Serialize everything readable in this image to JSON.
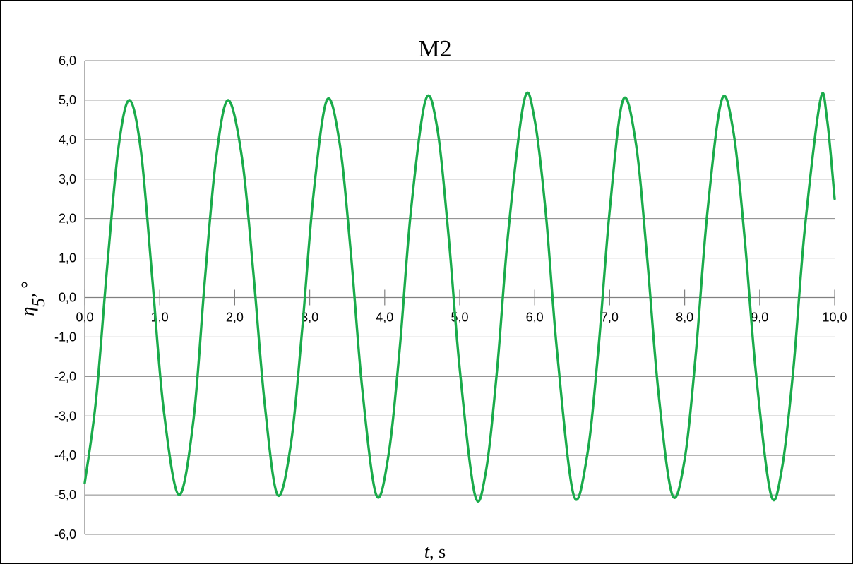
{
  "chart_data": {
    "type": "line",
    "title": "M2",
    "xlabel": {
      "symbol": "t",
      "unit": ", s"
    },
    "ylabel": {
      "symbol": "η",
      "subscript": "5",
      "unit": ", °"
    },
    "xlim": [
      0,
      10
    ],
    "ylim": [
      -6,
      6
    ],
    "x_ticks": [
      0,
      1,
      2,
      3,
      4,
      5,
      6,
      7,
      8,
      9,
      10
    ],
    "x_tick_labels": [
      "0,0",
      "1,0",
      "2,0",
      "3,0",
      "4,0",
      "5,0",
      "6,0",
      "7,0",
      "8,0",
      "9,0",
      "10,0"
    ],
    "y_ticks": [
      6,
      5,
      4,
      3,
      2,
      1,
      0,
      -1,
      -2,
      -3,
      -4,
      -5,
      -6
    ],
    "y_tick_labels": [
      "6,0",
      "5,0",
      "4,0",
      "3,0",
      "2,0",
      "1,0",
      "0,0",
      "-1,0",
      "-2,0",
      "-3,0",
      "-4,0",
      "-5,0",
      "-6,0"
    ],
    "grid": {
      "horizontal": true,
      "vertical": false
    },
    "legend": "none",
    "series": [
      {
        "color": "#1aab4b",
        "x": [
          0,
          0.15,
          0.3,
          0.45,
          0.597,
          0.75,
          0.9,
          1.05,
          1.255,
          1.45,
          1.6,
          1.75,
          1.913,
          2.1,
          2.25,
          2.4,
          2.571,
          2.75,
          2.9,
          3.05,
          3.229,
          3.4,
          3.55,
          3.7,
          3.887,
          4.05,
          4.2,
          4.35,
          4.545,
          4.7,
          4.85,
          5.0,
          5.203,
          5.35,
          5.5,
          5.65,
          5.861,
          6.0,
          6.15,
          6.3,
          6.519,
          6.7,
          6.85,
          7.0,
          7.177,
          7.35,
          7.5,
          7.65,
          7.835,
          8.0,
          8.15,
          8.3,
          8.493,
          8.65,
          8.8,
          8.95,
          9.151,
          9.3,
          9.45,
          9.6,
          9.809,
          9.9,
          10.0
        ],
        "y": [
          -4.7,
          -2.6,
          0.8,
          3.8,
          5.0,
          3.7,
          0.5,
          -2.8,
          -5.0,
          -3.1,
          0.4,
          3.5,
          5.0,
          3.5,
          0.6,
          -2.7,
          -5.0,
          -3.7,
          -0.8,
          2.6,
          5.0,
          3.9,
          1.1,
          -2.3,
          -5.0,
          -4.0,
          -1.3,
          2.2,
          5.0,
          4.3,
          1.6,
          -1.8,
          -5.0,
          -4.4,
          -1.8,
          1.7,
          5.0,
          4.5,
          2.1,
          -1.4,
          -5.0,
          -4.0,
          -1.3,
          2.2,
          5.0,
          3.9,
          1.0,
          -2.4,
          -5.0,
          -4.1,
          -1.4,
          2.1,
          5.0,
          4.2,
          1.5,
          -1.9,
          -5.0,
          -4.3,
          -1.8,
          1.7,
          5.0,
          4.5,
          2.5
        ]
      }
    ]
  }
}
